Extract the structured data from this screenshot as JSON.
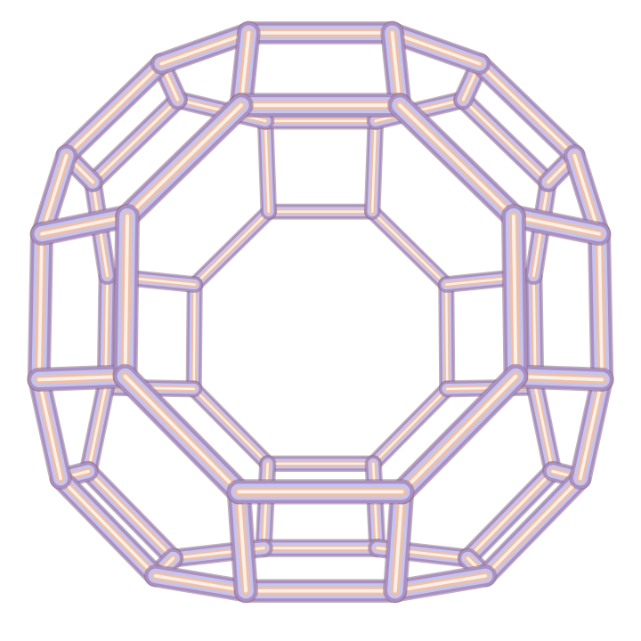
{
  "scene": {
    "subject": "truncated-cuboctahedron-wireframe",
    "background": "#ffffff",
    "colors": {
      "tube_light": "#fdf3ea",
      "tube_peach": "#f2c0a2",
      "tube_warm": "#d99683",
      "tube_mauve": "#a98fc2",
      "tube_lavender": "#c6c4ef",
      "tube_dark": "#8f6f8a"
    }
  }
}
